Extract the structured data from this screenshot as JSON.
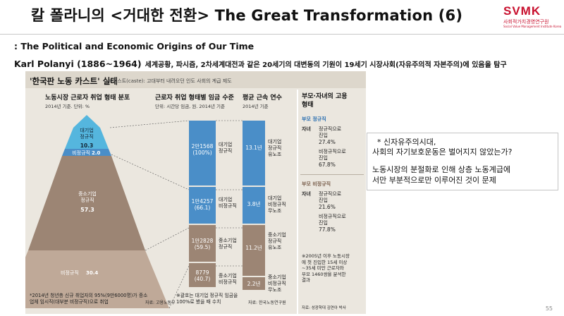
{
  "header": {
    "title": "칼 폴라니의 <거대한 전환> The Great Transformation (6)",
    "logo_text": "SVMK",
    "logo_sub": "사회적가치경영연구원",
    "logo_tiny": "Social Value Management Institute Korea"
  },
  "subtitle": ": The Political and Economic Origins of Our Time",
  "author_line": {
    "name": "Karl Polanyi (1886~1964)",
    "description": "세계공황, 파시즘, 2차세계대전과 같은 20세기의 대변동의 기원이 19세기 시장사회(자유주의적 자본주의)에 있음을 탐구"
  },
  "figure": {
    "title": "'한국판 노동 카스트' 실태",
    "note": "※카스트(caste): 고대부터 내려오던 인도 사회의 계급 제도",
    "col1": {
      "heading": "노동시장 근로자 취업 형태 분포",
      "sub": "2014년 기준. 단위: %",
      "segments": [
        {
          "label": "대기업\n정규직",
          "value": "10.3"
        },
        {
          "label": "비정규직",
          "value": "2.0"
        },
        {
          "label": "중소기업\n정규직",
          "value": "57.3"
        },
        {
          "label": "비정규직",
          "value": "30.4"
        }
      ],
      "footnote": "*2014년 청년층 신규 취업자의 95%(9만6000명)가 중소\n업체 임시직(대부분 비정규직)으로 취업",
      "source": "자료: 고용노동부"
    },
    "col2": {
      "heading": "근로자 취업 형태별 임금 수준",
      "sub": "단위: 시간당 임금, 원. 2014년 기준",
      "bars": [
        {
          "value": "2만1568",
          "pct": "(100%)",
          "label": "대기업\n정규직"
        },
        {
          "value": "1만4257",
          "pct": "(66.1)",
          "label": "대기업\n비정규직"
        },
        {
          "value": "1만2828",
          "pct": "(59.5)",
          "label": "중소기업\n정규직"
        },
        {
          "value": "8779",
          "pct": "(40.7)",
          "label": "중소기업\n비정규직"
        }
      ],
      "footnote": "※괄호는 대기업 정규직 임금을\n100%로 봤을 때 수치",
      "source": "자료: 한국노동연구원"
    },
    "col3": {
      "heading": "평균 근속 연수",
      "sub": "2014년 기준",
      "bars": [
        {
          "value": "13.1년",
          "label": "대기업\n정규직\n유노조"
        },
        {
          "value": "3.8년",
          "label": "대기업\n비정규직\n무노조"
        },
        {
          "value": "11.2년",
          "label": "중소기업\n정규직\n유노조"
        },
        {
          "value": "2.2년",
          "label": "중소기업\n비정규직\n무노조"
        }
      ]
    },
    "col4": {
      "heading": "부모·자녀의 고용\n형태",
      "group1_title": "부모  정규직",
      "group1_child": "자녀",
      "group1_a": "정규직으로\n진입",
      "group1_a_val": "27.4%",
      "group1_b": "비정규직으로\n진입",
      "group1_b_val": "67.8%",
      "group2_title": "부모  비정규직",
      "group2_child": "자녀",
      "group2_a": "정규직으로\n진입",
      "group2_a_val": "21.6%",
      "group2_b": "비정규직으로\n진입",
      "group2_b_val": "77.8%",
      "footnote": "※2005년 이후 노동시장\n에 첫 진입한 15세 이상\n~35세 미만 근로자와\n부모 1460쌍을 분석한\n결과",
      "source": "자료: 성광학대 김연아 박사"
    },
    "colors": {
      "blue": "#4a8ec8",
      "brown": "#9c8574",
      "cyan": "#55b6de"
    }
  },
  "callout": {
    "line1": "* 신자유주의시대,",
    "line2": "사회의 자기보호운동은 벌어지지 않았는가?",
    "line3": "노동시장의 분절화로 인해 상층 노동계급에",
    "line4": "서만 부분적으로만 이루어진 것이 문제"
  },
  "page_number": "55"
}
